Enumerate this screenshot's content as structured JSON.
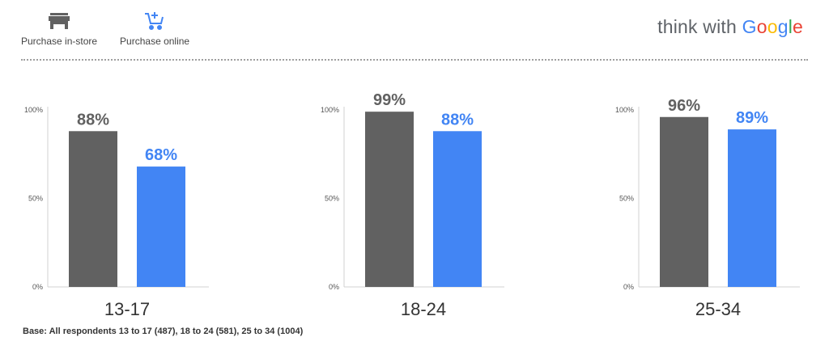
{
  "legend": {
    "items": [
      {
        "label": "Purchase in-store",
        "icon": "store-icon",
        "color": "#616161"
      },
      {
        "label": "Purchase online",
        "icon": "cart-plus-icon",
        "color": "#4285f4"
      }
    ]
  },
  "brand": {
    "prefix": "think with",
    "google": [
      "G",
      "o",
      "o",
      "g",
      "l",
      "e"
    ]
  },
  "footnote": "Base: All respondents 13 to 17 (487), 18 to 24 (581), 25 to 34 (1004)",
  "colors": {
    "in_store": "#616161",
    "online": "#4285f4"
  },
  "chart_data": [
    {
      "type": "bar",
      "categories": [
        "13-17"
      ],
      "series": [
        {
          "name": "Purchase in-store",
          "values": [
            88
          ],
          "labels": [
            "88%"
          ]
        },
        {
          "name": "Purchase online",
          "values": [
            68
          ],
          "labels": [
            "68%"
          ]
        }
      ],
      "yticks": [
        "100%",
        "50%",
        "0%"
      ],
      "ylim": [
        0,
        100
      ]
    },
    {
      "type": "bar",
      "categories": [
        "18-24"
      ],
      "series": [
        {
          "name": "Purchase in-store",
          "values": [
            99
          ],
          "labels": [
            "99%"
          ]
        },
        {
          "name": "Purchase online",
          "values": [
            88
          ],
          "labels": [
            "88%"
          ]
        }
      ],
      "yticks": [
        "100%",
        "50%",
        "0%"
      ],
      "ylim": [
        0,
        100
      ]
    },
    {
      "type": "bar",
      "categories": [
        "25-34"
      ],
      "series": [
        {
          "name": "Purchase in-store",
          "values": [
            96
          ],
          "labels": [
            "96%"
          ]
        },
        {
          "name": "Purchase online",
          "values": [
            89
          ],
          "labels": [
            "89%"
          ]
        }
      ],
      "yticks": [
        "100%",
        "50%",
        "0%"
      ],
      "ylim": [
        0,
        100
      ]
    }
  ]
}
